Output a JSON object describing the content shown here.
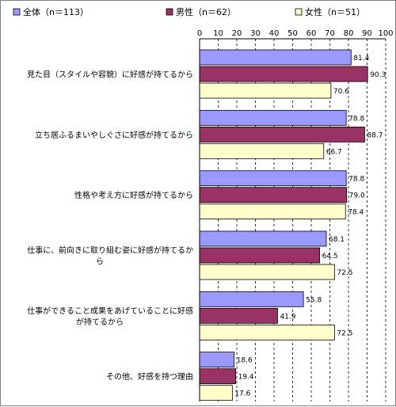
{
  "chart_data": {
    "type": "bar",
    "orientation": "horizontal",
    "categories": [
      [
        "見た目（スタイルや容貌）に好感が持てるから"
      ],
      [
        "立ち居ふるまいやしぐさに好感が持てるから"
      ],
      [
        "性格や考え方に好感が持てるから"
      ],
      [
        "仕事に、前向きに取り組む姿に好感が持てるか",
        "ら"
      ],
      [
        "仕事ができること成果をあげていることに好感",
        "が持てるから"
      ],
      [
        "その他、好感を持つ理由"
      ]
    ],
    "series": [
      {
        "name": "全体（n＝113）",
        "color": "#9999ff",
        "values": [
          81.4,
          78.8,
          78.8,
          68.1,
          55.8,
          18.6
        ]
      },
      {
        "name": "男性（n＝62）",
        "color": "#993366",
        "values": [
          90.3,
          88.7,
          79.0,
          64.5,
          41.9,
          19.4
        ]
      },
      {
        "name": "女性（n＝51）",
        "color": "#ffffcc",
        "values": [
          70.6,
          66.7,
          78.4,
          72.5,
          72.5,
          17.6
        ]
      }
    ],
    "value_labels": [
      [
        "81.4",
        "78.8",
        "78.8",
        "68.1",
        "55.8",
        "18.6"
      ],
      [
        "90.3",
        "88.7",
        "79.0",
        "64.5",
        "41.9",
        "19.4"
      ],
      [
        "70.6",
        "66.7",
        "78.4",
        "72.5",
        "72.5",
        "17.6"
      ]
    ],
    "xlim": [
      0,
      100
    ],
    "xticks": [
      "0",
      "10",
      "20",
      "30",
      "40",
      "50",
      "60",
      "70",
      "80",
      "90",
      "100"
    ],
    "grid": "vertical dashed",
    "legend_position": "top"
  }
}
